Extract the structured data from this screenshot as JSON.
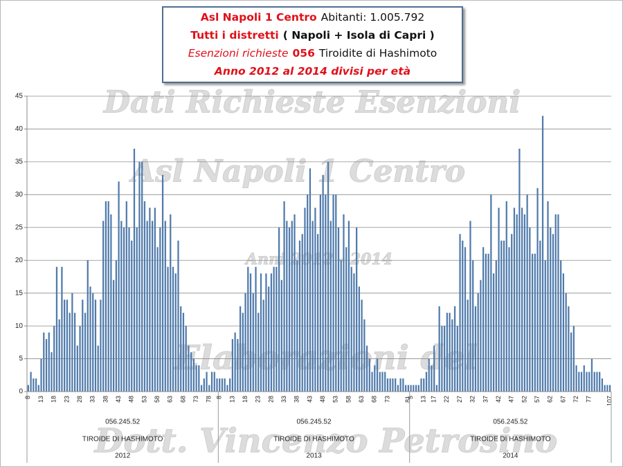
{
  "title_lines": [
    [
      {
        "text": "Asl Napoli 1 Centro",
        "color": "#e0101a",
        "bold": true,
        "italic": false
      },
      {
        "text": "Abitanti: 1.005.792",
        "color": "#111111",
        "bold": false,
        "italic": false
      }
    ],
    [
      {
        "text": "Tutti i distretti",
        "color": "#e0101a",
        "bold": true,
        "italic": false
      },
      {
        "text": "( Napoli + Isola di Capri )",
        "color": "#111111",
        "bold": true,
        "italic": false
      }
    ],
    [
      {
        "text": "Esenzioni richieste",
        "color": "#e0101a",
        "bold": false,
        "italic": true
      },
      {
        "text": "056",
        "color": "#e0101a",
        "bold": true,
        "italic": false
      },
      {
        "text": "Tiroidite di Hashimoto",
        "color": "#111111",
        "bold": false,
        "italic": false
      }
    ],
    [
      {
        "text": "Anno 2012 al 2014 divisi per età",
        "color": "#e0101a",
        "bold": true,
        "italic": true
      }
    ]
  ],
  "watermarks": [
    "Dati Richieste Esenzioni",
    "Asl Napoli 1 Centro",
    "Anni 2012 - 2014",
    "Elaborazioni del",
    "Dott. Vincenzo Petrosino"
  ],
  "chart_data": {
    "type": "bar",
    "color": "#4f7aab",
    "grid": true,
    "ylim": [
      0,
      45
    ],
    "yticks": [
      0,
      5,
      10,
      15,
      20,
      25,
      30,
      35,
      40,
      45
    ],
    "groups": [
      {
        "code": "056.245.52",
        "name": "TIROIDE DI HASHIMOTO",
        "year": "2012",
        "categories": [
          "8",
          null,
          null,
          null,
          null,
          "13",
          null,
          null,
          null,
          null,
          "18",
          null,
          null,
          null,
          null,
          "23",
          null,
          null,
          null,
          null,
          "28",
          null,
          null,
          null,
          null,
          "33",
          null,
          null,
          null,
          null,
          "38",
          null,
          null,
          null,
          null,
          "43",
          null,
          null,
          null,
          null,
          "48",
          null,
          null,
          null,
          null,
          "53",
          null,
          null,
          null,
          null,
          "58",
          null,
          null,
          null,
          null,
          "63",
          null,
          null,
          null,
          null,
          "68",
          null,
          null,
          null,
          null,
          "73",
          null,
          null,
          null,
          null,
          "78",
          null,
          null,
          null
        ],
        "values": [
          1,
          3,
          2,
          2,
          1,
          5,
          9,
          8,
          9,
          6,
          10,
          19,
          11,
          19,
          14,
          14,
          12,
          15,
          12,
          7,
          10,
          14,
          12,
          20,
          16,
          15,
          14,
          7,
          14,
          26,
          29,
          29,
          27,
          17,
          20,
          32,
          26,
          25,
          29,
          25,
          23,
          37,
          25,
          35,
          35,
          29,
          26,
          28,
          26,
          28,
          22,
          25,
          33,
          26,
          19,
          27,
          19,
          18,
          23,
          13,
          12,
          10,
          7,
          6,
          5,
          4,
          4,
          1,
          2,
          3,
          1,
          3,
          3,
          2
        ]
      },
      {
        "code": "056.245.52",
        "name": "TIROIDE DI HASHIMOTO",
        "year": "2013",
        "categories": [
          "8",
          null,
          null,
          null,
          null,
          "13",
          null,
          null,
          null,
          null,
          "18",
          null,
          null,
          null,
          null,
          "23",
          null,
          null,
          null,
          null,
          "28",
          null,
          null,
          null,
          null,
          "33",
          null,
          null,
          null,
          null,
          "38",
          null,
          null,
          null,
          null,
          "43",
          null,
          null,
          null,
          null,
          "48",
          null,
          null,
          null,
          null,
          "53",
          null,
          null,
          null,
          null,
          "58",
          null,
          null,
          null,
          null,
          "63",
          null,
          null,
          null,
          null,
          "68",
          null,
          null,
          null,
          null,
          "73",
          null,
          null,
          null,
          null,
          null,
          null,
          null,
          "81"
        ],
        "values": [
          2,
          2,
          2,
          1,
          2,
          8,
          9,
          8,
          13,
          12,
          15,
          19,
          18,
          15,
          19,
          12,
          18,
          14,
          18,
          16,
          18,
          19,
          19,
          25,
          17,
          29,
          26,
          25,
          26,
          27,
          20,
          23,
          24,
          28,
          30,
          34,
          26,
          28,
          24,
          30,
          33,
          30,
          35,
          26,
          30,
          30,
          25,
          20,
          27,
          22,
          26,
          19,
          18,
          25,
          16,
          14,
          11,
          7,
          5,
          3,
          4,
          5,
          3,
          3,
          3,
          2,
          2,
          2,
          2,
          1,
          2,
          2,
          1,
          1
        ]
      },
      {
        "code": "056.245.52",
        "name": "TIROIDE DI HASHIMOTO",
        "year": "2014",
        "categories": [
          "5",
          null,
          null,
          null,
          null,
          "13",
          null,
          null,
          null,
          "17",
          null,
          null,
          null,
          null,
          "22",
          null,
          null,
          null,
          null,
          "27",
          null,
          null,
          null,
          null,
          "32",
          null,
          null,
          null,
          null,
          "37",
          null,
          null,
          null,
          null,
          "42",
          null,
          null,
          null,
          null,
          "47",
          null,
          null,
          null,
          null,
          "52",
          null,
          null,
          null,
          null,
          "57",
          null,
          null,
          null,
          null,
          "62",
          null,
          null,
          null,
          null,
          "67",
          null,
          null,
          null,
          null,
          "72",
          null,
          null,
          null,
          null,
          "77",
          null,
          null,
          null,
          null,
          null,
          null,
          null,
          "107"
        ],
        "values": [
          1,
          1,
          1,
          1,
          2,
          2,
          3,
          5,
          4,
          7,
          1,
          13,
          10,
          10,
          12,
          12,
          11,
          13,
          10,
          24,
          23,
          22,
          14,
          26,
          20,
          13,
          15,
          17,
          22,
          21,
          21,
          30,
          18,
          20,
          28,
          23,
          23,
          29,
          22,
          24,
          28,
          27,
          37,
          28,
          27,
          30,
          25,
          21,
          21,
          31,
          23,
          42,
          20,
          29,
          25,
          24,
          27,
          27,
          20,
          18,
          15,
          13,
          9,
          10,
          4,
          3,
          3,
          4,
          3,
          3,
          5,
          3,
          3,
          3,
          2,
          1,
          1,
          1
        ]
      }
    ]
  }
}
